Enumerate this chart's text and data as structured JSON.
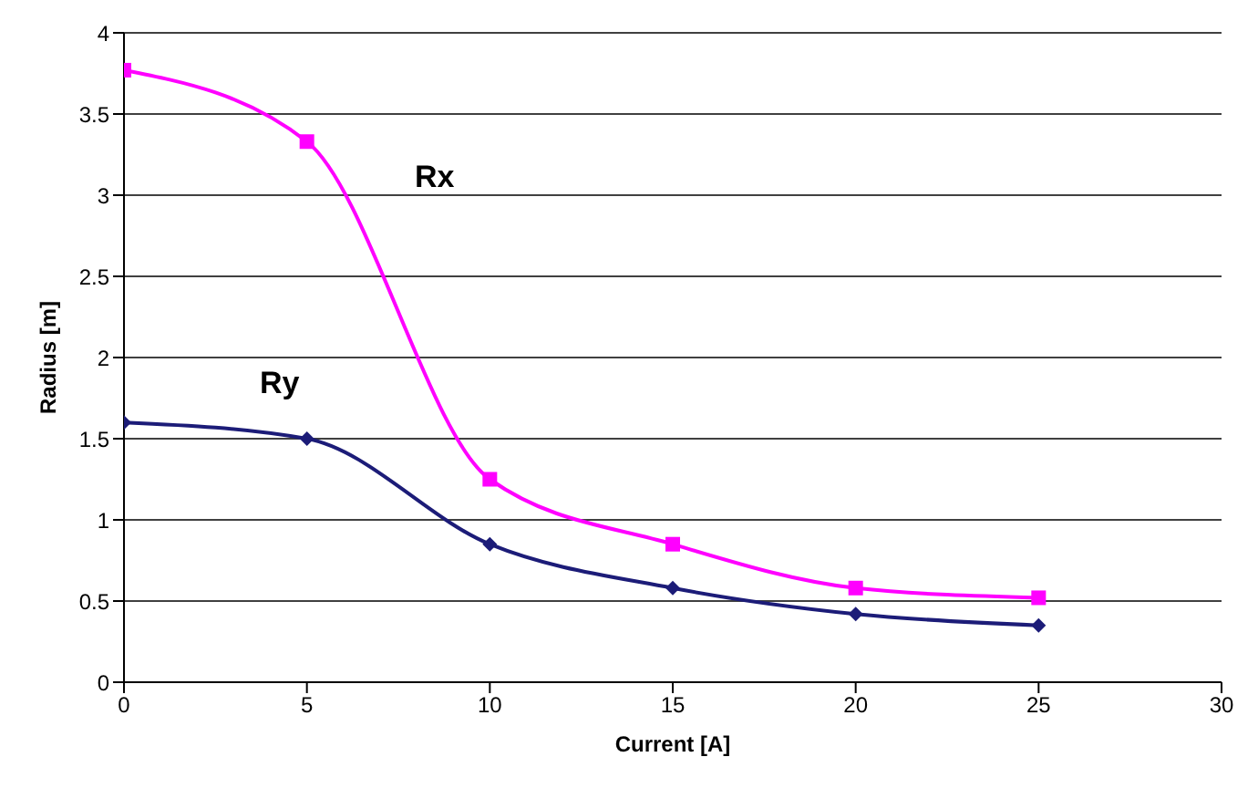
{
  "chart_data": {
    "type": "line",
    "xlabel": "Current [A]",
    "ylabel": "Radius [m]",
    "xlim": [
      0,
      30
    ],
    "xticks": [
      0,
      5,
      10,
      15,
      20,
      25,
      30
    ],
    "ylim": [
      0,
      4
    ],
    "yticks": [
      0,
      0.5,
      1,
      1.5,
      2,
      2.5,
      3,
      3.5,
      4
    ],
    "grid": "y",
    "legend": false,
    "x": [
      0,
      5,
      10,
      15,
      20,
      25
    ],
    "series": [
      {
        "name": "Rx",
        "color": "#ff00ff",
        "marker": "square",
        "values": [
          3.77,
          3.33,
          1.25,
          0.85,
          0.58,
          0.52
        ]
      },
      {
        "name": "Ry",
        "color": "#1c1c78",
        "marker": "diamond",
        "values": [
          1.6,
          1.5,
          0.85,
          0.58,
          0.42,
          0.35
        ]
      }
    ]
  }
}
